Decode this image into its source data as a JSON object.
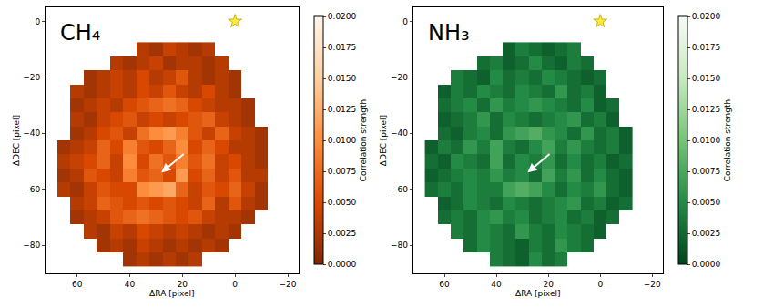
{
  "chart_data": [
    {
      "type": "heatmap",
      "label": "CH₄",
      "color": "orange",
      "grid": false,
      "x_label": "ΔRA [pixel]",
      "y_label": "ΔDEC [pixel]",
      "xlim": [
        72,
        -24
      ],
      "ylim": [
        -90,
        5
      ],
      "xticks": [
        60,
        40,
        20,
        0,
        {
          "value": -20,
          "label": "−20"
        }
      ],
      "yticks": [
        0,
        {
          "value": -20,
          "label": "−20"
        },
        {
          "value": -40,
          "label": "−40"
        },
        {
          "value": -60,
          "label": "−60"
        },
        {
          "value": -80,
          "label": "−80"
        }
      ],
      "x": [
        65,
        60,
        55,
        50,
        45,
        40,
        35,
        30,
        25,
        20,
        15,
        10,
        5,
        0,
        -5,
        -10
      ],
      "y": [
        -10,
        -15,
        -20,
        -25,
        -30,
        -35,
        -40,
        -45,
        -50,
        -55,
        -60,
        -65,
        -70,
        -75,
        -80,
        -85
      ],
      "z": [
        [
          null,
          null,
          null,
          null,
          null,
          null,
          0.003,
          0.002,
          0.004,
          0.003,
          0.002,
          0.003,
          null,
          null,
          null,
          null
        ],
        [
          null,
          null,
          null,
          null,
          0.003,
          0.002,
          0.003,
          0.004,
          0.002,
          0.003,
          0.003,
          0.002,
          0.003,
          null,
          null,
          null
        ],
        [
          null,
          null,
          0.002,
          0.003,
          0.004,
          0.003,
          0.005,
          0.003,
          0.004,
          0.006,
          0.003,
          0.002,
          0.003,
          0.002,
          null,
          null
        ],
        [
          null,
          0.003,
          0.002,
          0.003,
          0.004,
          0.003,
          0.005,
          0.004,
          0.006,
          0.004,
          0.003,
          0.005,
          0.003,
          0.002,
          null,
          null
        ],
        [
          null,
          0.002,
          0.003,
          0.004,
          0.003,
          0.005,
          0.006,
          0.007,
          0.008,
          0.007,
          0.005,
          0.004,
          0.003,
          0.003,
          0.002,
          null
        ],
        [
          null,
          0.003,
          0.002,
          0.004,
          0.005,
          0.006,
          0.004,
          0.005,
          0.004,
          0.005,
          0.006,
          0.007,
          0.004,
          0.003,
          0.002,
          null
        ],
        [
          null,
          0.002,
          0.003,
          0.005,
          0.006,
          0.004,
          0.008,
          0.01,
          0.011,
          0.009,
          0.006,
          0.004,
          0.007,
          0.004,
          0.003,
          0.002
        ],
        [
          0.002,
          0.003,
          0.004,
          0.007,
          0.005,
          0.009,
          0.006,
          0.005,
          0.007,
          0.01,
          0.005,
          0.007,
          0.005,
          0.003,
          0.003,
          0.002
        ],
        [
          0.003,
          0.004,
          0.005,
          0.007,
          0.004,
          0.01,
          0.005,
          0.008,
          0.006,
          0.009,
          0.006,
          0.008,
          0.004,
          0.005,
          0.003,
          0.002
        ],
        [
          0.002,
          0.003,
          0.006,
          0.005,
          0.004,
          0.009,
          0.006,
          0.007,
          0.005,
          0.011,
          0.005,
          0.007,
          0.004,
          0.006,
          0.003,
          0.003
        ],
        [
          0.003,
          0.002,
          0.004,
          0.006,
          0.005,
          0.005,
          0.01,
          0.011,
          0.012,
          0.007,
          0.004,
          0.006,
          0.005,
          0.007,
          0.004,
          0.002
        ],
        [
          null,
          0.003,
          0.004,
          0.007,
          0.006,
          0.005,
          0.006,
          0.005,
          0.006,
          0.005,
          0.004,
          0.007,
          0.003,
          0.006,
          0.003,
          0.002
        ],
        [
          null,
          0.002,
          0.003,
          0.004,
          0.006,
          0.007,
          0.008,
          0.007,
          0.006,
          0.005,
          0.006,
          0.004,
          0.003,
          0.003,
          0.002,
          null
        ],
        [
          null,
          null,
          0.003,
          0.002,
          0.004,
          0.003,
          0.005,
          0.004,
          0.003,
          0.004,
          0.003,
          0.002,
          0.003,
          0.002,
          null,
          null
        ],
        [
          null,
          null,
          null,
          0.002,
          0.003,
          0.002,
          0.004,
          0.003,
          0.002,
          0.003,
          0.002,
          0.003,
          0.002,
          null,
          null,
          null
        ],
        [
          null,
          null,
          null,
          null,
          null,
          0.002,
          0.003,
          0.002,
          0.003,
          0.002,
          0.003,
          null,
          null,
          null,
          null,
          null
        ]
      ],
      "colorbar": {
        "title": "Correlation strength",
        "range": [
          0,
          0.02
        ],
        "ticks": [
          {
            "value": 0,
            "label": "0.0000"
          },
          {
            "value": 0.0025,
            "label": "0.0025"
          },
          {
            "value": 0.005,
            "label": "0.0050"
          },
          {
            "value": 0.0075,
            "label": "0.0075"
          },
          {
            "value": 0.01,
            "label": "0.0100"
          },
          {
            "value": 0.0125,
            "label": "0.0125"
          },
          {
            "value": 0.015,
            "label": "0.0150"
          },
          {
            "value": 0.0175,
            "label": "0.0175"
          },
          {
            "value": 0.02,
            "label": "0.0200"
          }
        ]
      },
      "star": {
        "x": 0,
        "y": 0
      },
      "arrow": {
        "x": 28,
        "y": -54,
        "from_x": 19,
        "from_y": -47
      }
    },
    {
      "type": "heatmap",
      "label": "NH₃",
      "color": "green",
      "grid": false,
      "x_label": "ΔRA [pixel]",
      "y_label": "ΔDEC [pixel]",
      "xlim": [
        72,
        -24
      ],
      "ylim": [
        -90,
        5
      ],
      "xticks": [
        60,
        40,
        20,
        0,
        {
          "value": -20,
          "label": "−20"
        }
      ],
      "yticks": [
        0,
        {
          "value": -20,
          "label": "−20"
        },
        {
          "value": -40,
          "label": "−40"
        },
        {
          "value": -60,
          "label": "−60"
        },
        {
          "value": -80,
          "label": "−80"
        }
      ],
      "x": [
        65,
        60,
        55,
        50,
        45,
        40,
        35,
        30,
        25,
        20,
        15,
        10,
        5,
        0,
        -5,
        -10
      ],
      "y": [
        -10,
        -15,
        -20,
        -25,
        -30,
        -35,
        -40,
        -45,
        -50,
        -55,
        -60,
        -65,
        -70,
        -75,
        -80,
        -85
      ],
      "z": [
        [
          null,
          null,
          null,
          null,
          null,
          null,
          0.002,
          0.004,
          0.003,
          0.002,
          0.003,
          0.004,
          null,
          null,
          null,
          null
        ],
        [
          null,
          null,
          null,
          null,
          0.003,
          0.004,
          0.002,
          0.003,
          0.005,
          0.003,
          0.002,
          0.004,
          0.003,
          null,
          null,
          null
        ],
        [
          null,
          null,
          0.004,
          0.003,
          0.002,
          0.005,
          0.003,
          0.004,
          0.003,
          0.005,
          0.004,
          0.003,
          0.002,
          0.003,
          null,
          null
        ],
        [
          null,
          0.002,
          0.004,
          0.003,
          0.005,
          0.004,
          0.003,
          0.005,
          0.004,
          0.003,
          0.006,
          0.003,
          0.004,
          0.002,
          null,
          null
        ],
        [
          null,
          0.003,
          0.004,
          0.005,
          0.003,
          0.006,
          0.004,
          0.005,
          0.006,
          0.005,
          0.004,
          0.003,
          0.005,
          0.002,
          0.003,
          null
        ],
        [
          null,
          0.002,
          0.003,
          0.004,
          0.006,
          0.003,
          0.005,
          0.004,
          0.003,
          0.004,
          0.005,
          0.006,
          0.003,
          0.004,
          0.002,
          null
        ],
        [
          null,
          0.003,
          0.002,
          0.004,
          0.005,
          0.003,
          0.006,
          0.007,
          0.008,
          0.006,
          0.005,
          0.003,
          0.006,
          0.003,
          0.004,
          0.002
        ],
        [
          0.002,
          0.004,
          0.003,
          0.006,
          0.004,
          0.007,
          0.004,
          0.003,
          0.005,
          0.007,
          0.004,
          0.006,
          0.004,
          0.003,
          0.004,
          0.002
        ],
        [
          0.003,
          0.002,
          0.005,
          0.004,
          0.003,
          0.007,
          0.003,
          0.005,
          0.004,
          0.006,
          0.003,
          0.005,
          0.003,
          0.004,
          0.002,
          0.003
        ],
        [
          0.002,
          0.003,
          0.004,
          0.005,
          0.004,
          0.006,
          0.004,
          0.005,
          0.003,
          0.007,
          0.004,
          0.006,
          0.003,
          0.005,
          0.003,
          0.002
        ],
        [
          0.003,
          0.004,
          0.003,
          0.005,
          0.004,
          0.004,
          0.007,
          0.008,
          0.007,
          0.005,
          0.003,
          0.005,
          0.004,
          0.006,
          0.003,
          0.002
        ],
        [
          null,
          0.002,
          0.003,
          0.005,
          0.004,
          0.003,
          0.005,
          0.004,
          0.003,
          0.004,
          0.005,
          0.006,
          0.003,
          0.004,
          0.002,
          0.003
        ],
        [
          null,
          0.003,
          0.004,
          0.003,
          0.005,
          0.006,
          0.004,
          0.005,
          0.003,
          0.004,
          0.005,
          0.003,
          0.004,
          0.002,
          0.003,
          null
        ],
        [
          null,
          null,
          0.004,
          0.003,
          0.005,
          0.004,
          0.003,
          0.006,
          0.004,
          0.003,
          0.005,
          0.004,
          0.003,
          0.002,
          null,
          null
        ],
        [
          null,
          null,
          null,
          0.003,
          0.005,
          0.004,
          0.003,
          0.002,
          0.004,
          0.003,
          0.006,
          0.004,
          0.003,
          null,
          null,
          null
        ],
        [
          null,
          null,
          null,
          null,
          null,
          0.004,
          0.003,
          0.002,
          0.005,
          0.003,
          0.004,
          null,
          null,
          null,
          null,
          null
        ]
      ],
      "colorbar": {
        "title": "Correlation strength",
        "range": [
          0,
          0.02
        ],
        "ticks": [
          {
            "value": 0,
            "label": "0.0000"
          },
          {
            "value": 0.0025,
            "label": "0.0025"
          },
          {
            "value": 0.005,
            "label": "0.0050"
          },
          {
            "value": 0.0075,
            "label": "0.0075"
          },
          {
            "value": 0.01,
            "label": "0.0100"
          },
          {
            "value": 0.0125,
            "label": "0.0125"
          },
          {
            "value": 0.015,
            "label": "0.0150"
          },
          {
            "value": 0.0175,
            "label": "0.0175"
          },
          {
            "value": 0.02,
            "label": "0.0200"
          }
        ]
      },
      "star": {
        "x": 0,
        "y": 0
      },
      "arrow": {
        "x": 28,
        "y": -54,
        "from_x": 19,
        "from_y": -47
      }
    }
  ]
}
